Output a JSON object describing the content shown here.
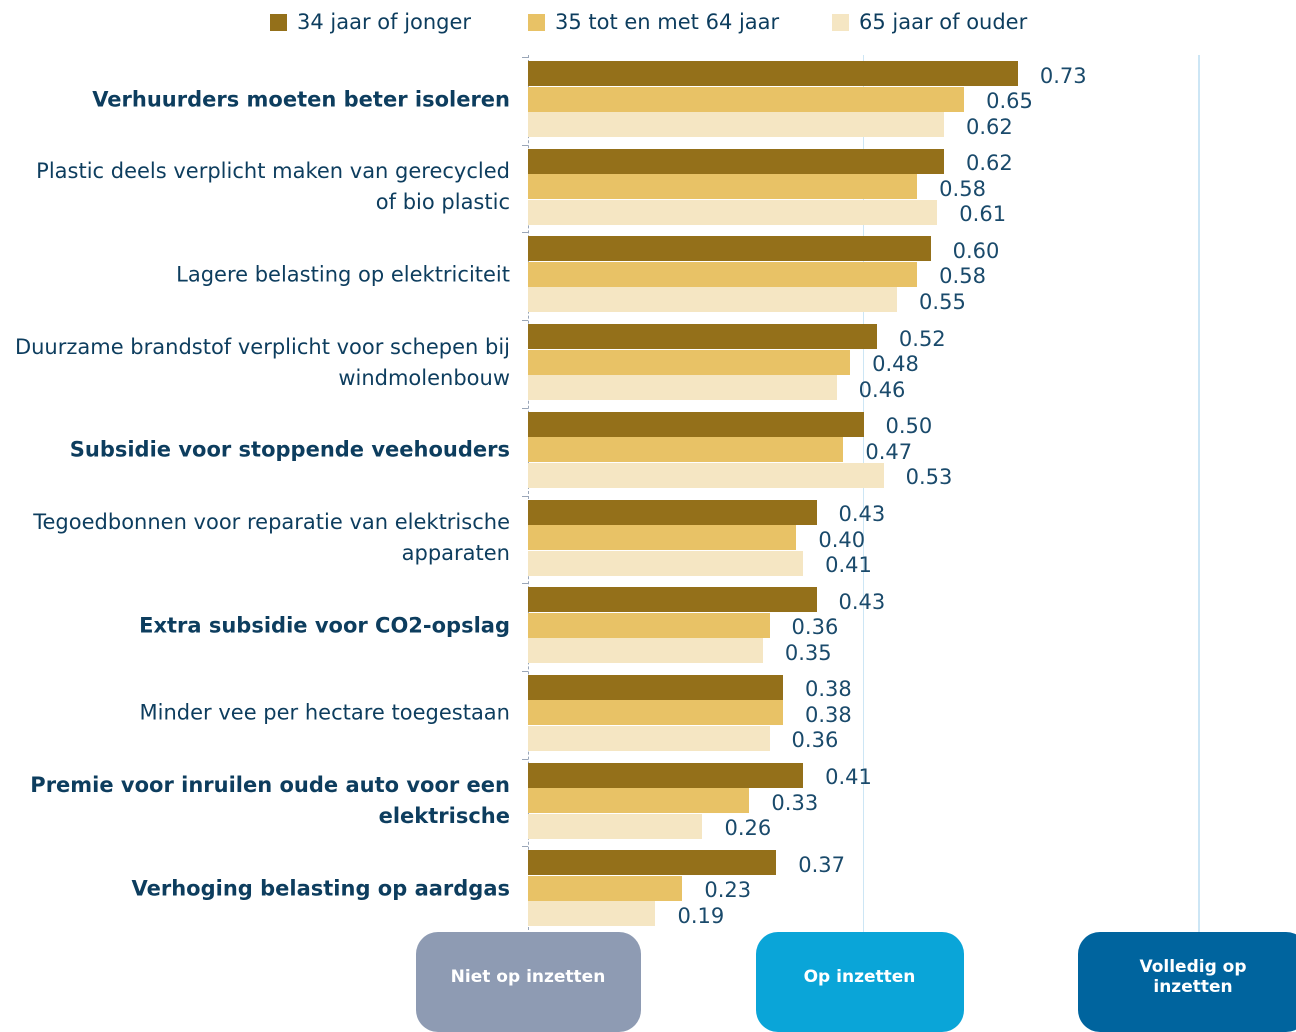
{
  "chart_data": {
    "type": "bar",
    "orientation": "horizontal",
    "categories": [
      "Verhuurders moeten beter isoleren",
      "Plastic deels verplicht maken van gerecycled of bio plastic",
      "Lagere belasting op elektriciteit",
      "Duurzame brandstof verplicht voor schepen bij windmolenbouw",
      "Subsidie voor stoppende veehouders",
      "Tegoedbonnen voor reparatie van elektrische apparaten",
      "Extra subsidie voor CO2-opslag",
      "Minder vee per hectare toegestaan",
      "Premie voor inruilen oude auto voor een elektrische",
      "Verhoging belasting op aardgas"
    ],
    "bold_categories": [
      true,
      false,
      false,
      false,
      true,
      false,
      true,
      false,
      true,
      true
    ],
    "series": [
      {
        "name": "34 jaar of jonger",
        "color": "#94701a",
        "values": [
          0.73,
          0.62,
          0.6,
          0.52,
          0.5,
          0.43,
          0.43,
          0.38,
          0.41,
          0.37
        ],
        "value_labels": [
          "0.73",
          "0.62",
          "0.60",
          "0.52",
          "0.50",
          "0.43",
          "0.43",
          "0.38",
          "0.41",
          "0.37"
        ]
      },
      {
        "name": "35 tot en met 64 jaar",
        "color": "#e8c266",
        "values": [
          0.65,
          0.58,
          0.58,
          0.48,
          0.47,
          0.4,
          0.36,
          0.38,
          0.33,
          0.23
        ],
        "value_labels": [
          "0.65",
          "0.58",
          "0.58",
          "0.48",
          "0.47",
          "0.40",
          "0.36",
          "0.38",
          "0.33",
          "0.23"
        ]
      },
      {
        "name": "65 jaar of ouder",
        "color": "#f5e6c3",
        "values": [
          0.62,
          0.61,
          0.55,
          0.46,
          0.53,
          0.41,
          0.35,
          0.36,
          0.26,
          0.19
        ],
        "value_labels": [
          "0.62",
          "0.61",
          "0.55",
          "0.46",
          "0.53",
          "0.41",
          "0.35",
          "0.36",
          "0.26",
          "0.19"
        ]
      }
    ],
    "xlim": [
      0,
      1
    ],
    "xticks": [
      {
        "value": 0,
        "label": "Niet op inzetten",
        "color": "#8e9bb3"
      },
      {
        "value": 0.5,
        "label": "Op inzetten",
        "color": "#0aa5d8"
      },
      {
        "value": 1,
        "label": "Volledig op inzetten",
        "color": "#00649e"
      }
    ],
    "grid": true
  }
}
